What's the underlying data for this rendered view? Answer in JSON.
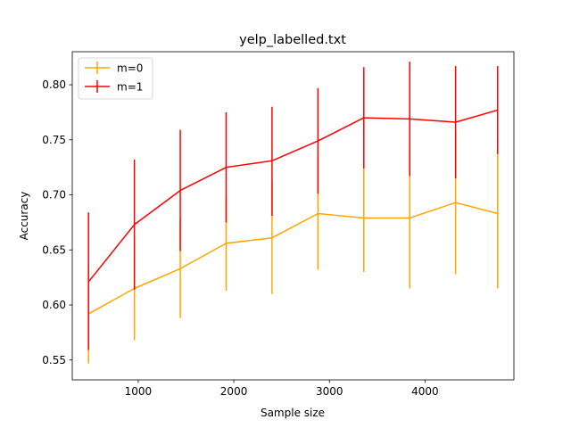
{
  "chart_data": {
    "type": "line",
    "title": "yelp_labelled.txt",
    "xlabel": "Sample size",
    "ylabel": "Accuracy",
    "xlim": [
      310,
      4930
    ],
    "ylim": [
      0.532,
      0.83
    ],
    "xticks": [
      1000,
      2000,
      3000,
      4000
    ],
    "xtick_labels": [
      "1000",
      "2000",
      "3000",
      "4000"
    ],
    "yticks": [
      0.55,
      0.6,
      0.65,
      0.7,
      0.75,
      0.8
    ],
    "ytick_labels": [
      "0.55",
      "0.60",
      "0.65",
      "0.70",
      "0.75",
      "0.80"
    ],
    "grid": false,
    "legend_position": "top-left",
    "x": [
      480,
      960,
      1440,
      1920,
      2400,
      2880,
      3360,
      3840,
      4320,
      4760
    ],
    "series": [
      {
        "name": "m=0",
        "color": "#ffa500",
        "values": [
          0.592,
          0.615,
          0.633,
          0.656,
          0.661,
          0.683,
          0.679,
          0.679,
          0.693,
          0.683
        ],
        "err_low": [
          0.547,
          0.568,
          0.588,
          0.613,
          0.61,
          0.632,
          0.63,
          0.615,
          0.628,
          0.615
        ],
        "err_high": [
          0.637,
          0.663,
          0.678,
          0.699,
          0.712,
          0.734,
          0.728,
          0.743,
          0.758,
          0.751
        ]
      },
      {
        "name": "m=1",
        "color": "#ff0000",
        "values": [
          0.621,
          0.673,
          0.704,
          0.725,
          0.731,
          0.749,
          0.77,
          0.769,
          0.766,
          0.777
        ],
        "err_low": [
          0.559,
          0.614,
          0.649,
          0.675,
          0.681,
          0.701,
          0.724,
          0.717,
          0.715,
          0.737
        ],
        "err_high": [
          0.684,
          0.732,
          0.759,
          0.775,
          0.78,
          0.797,
          0.816,
          0.821,
          0.817,
          0.817
        ]
      }
    ]
  }
}
